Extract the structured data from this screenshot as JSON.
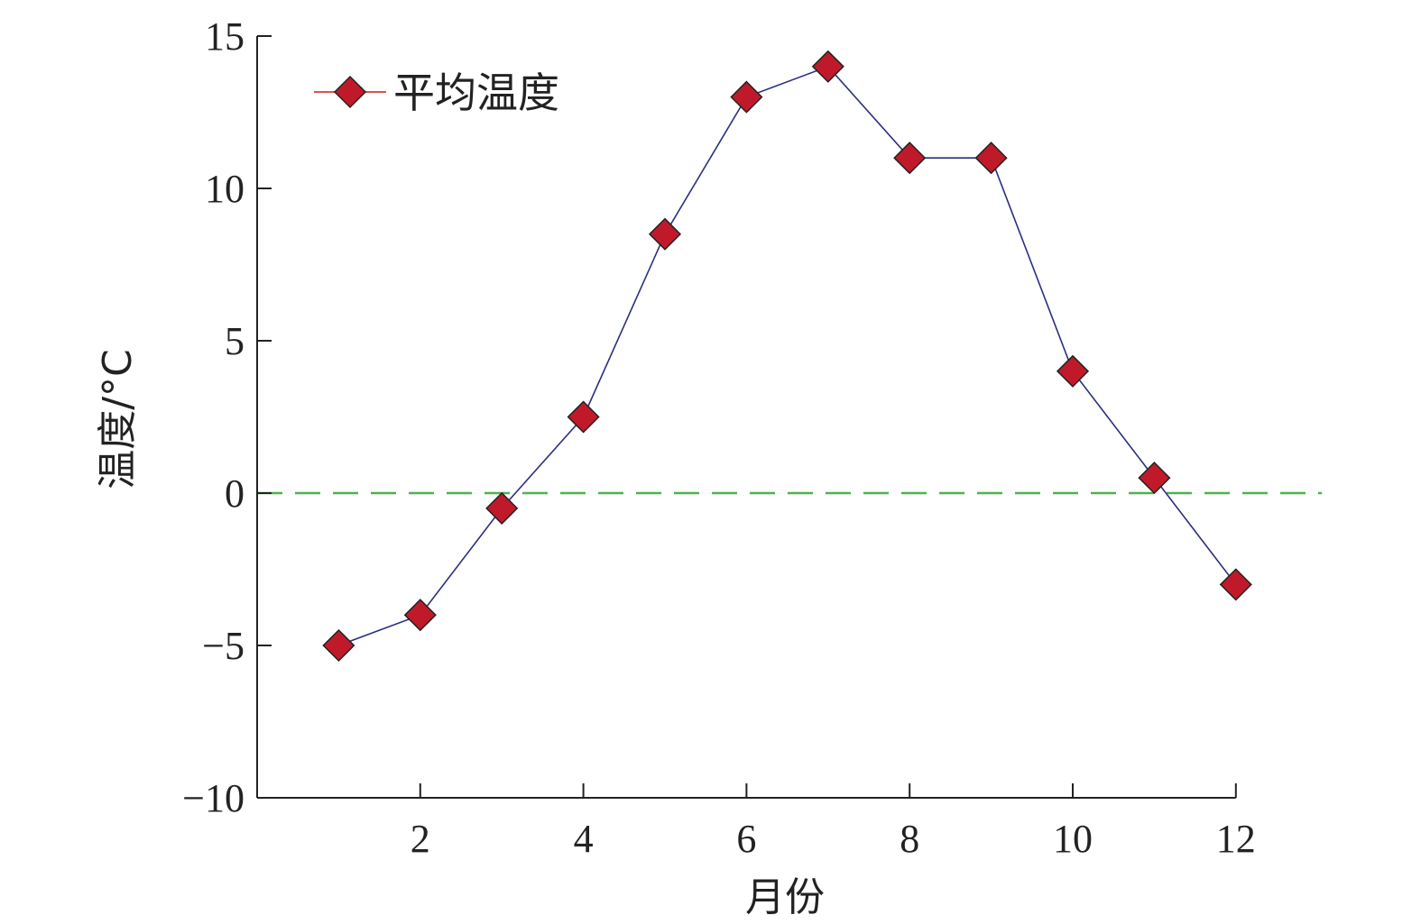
{
  "chart_data": {
    "type": "line",
    "title": "",
    "xlabel": "月份",
    "ylabel": "温度/°C",
    "xlim": [
      0,
      13
    ],
    "ylim": [
      -10,
      15
    ],
    "x_ticks": [
      "2",
      "4",
      "6",
      "8",
      "10",
      "12"
    ],
    "y_ticks": [
      "15",
      "10",
      "5",
      "0",
      "−5",
      "−10"
    ],
    "grid": false,
    "legend_position": "top-left",
    "reference_line": {
      "y": 0,
      "style": "dashed",
      "color": "#4db34d"
    },
    "series": [
      {
        "name": "平均温度",
        "x": [
          1,
          2,
          3,
          4,
          5,
          6,
          7,
          8,
          9,
          10,
          11,
          12
        ],
        "y": [
          -5,
          -4,
          -0.5,
          2.5,
          8.5,
          13,
          14,
          11,
          11,
          4,
          0.5,
          -3
        ],
        "line_color": "#2b2f7f",
        "marker": "diamond",
        "marker_color": "#c01a2a"
      }
    ]
  }
}
